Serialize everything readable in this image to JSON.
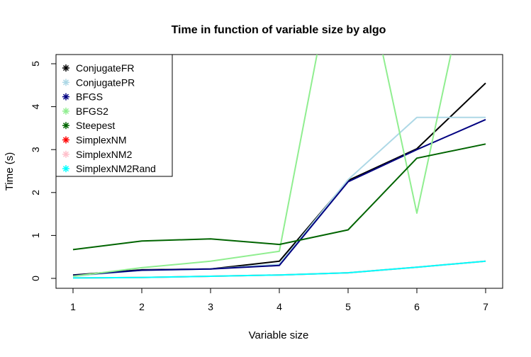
{
  "chart_data": {
    "type": "line",
    "title": "Time in function of variable size by algo",
    "xlabel": "Variable size",
    "ylabel": "Time (s)",
    "x": [
      1,
      2,
      3,
      4,
      5,
      6,
      7
    ],
    "xlim": [
      1,
      7
    ],
    "ylim": [
      0,
      5
    ],
    "xticks": [
      1,
      2,
      3,
      4,
      5,
      6,
      7
    ],
    "yticks": [
      0,
      1,
      2,
      3,
      4,
      5
    ],
    "grid": false,
    "legend_position": "top-left",
    "series": [
      {
        "name": "ConjugateFR",
        "color": "#000000",
        "values": [
          0.08,
          0.2,
          0.22,
          0.4,
          2.28,
          3.02,
          4.55
        ]
      },
      {
        "name": "ConjugatePR",
        "color": "#add8e6",
        "values": [
          0.05,
          0.19,
          0.22,
          0.33,
          2.3,
          3.75,
          3.75
        ]
      },
      {
        "name": "BFGS",
        "color": "#000080",
        "values": [
          0.07,
          0.19,
          0.22,
          0.3,
          2.25,
          3.0,
          3.7
        ]
      },
      {
        "name": "BFGS2",
        "color": "#90ee90",
        "values": [
          0.05,
          0.25,
          0.4,
          0.63,
          9.0,
          1.52,
          9.0
        ]
      },
      {
        "name": "Steepest",
        "color": "#006400",
        "values": [
          0.67,
          0.87,
          0.92,
          0.79,
          1.13,
          2.8,
          3.13
        ]
      },
      {
        "name": "SimplexNM",
        "color": "#ff0000",
        "values": [
          0.01,
          0.02,
          0.05,
          0.08,
          0.13,
          0.26,
          0.4
        ]
      },
      {
        "name": "SimplexNM2",
        "color": "#ffc0cb",
        "values": [
          0.01,
          0.02,
          0.05,
          0.08,
          0.13,
          0.26,
          0.4
        ]
      },
      {
        "name": "SimplexNM2Rand",
        "color": "#00ffff",
        "values": [
          0.01,
          0.02,
          0.05,
          0.08,
          0.13,
          0.26,
          0.4
        ]
      }
    ]
  }
}
